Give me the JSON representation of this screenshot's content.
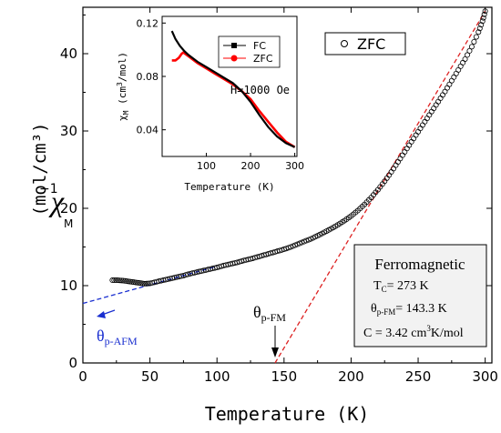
{
  "chart_data": [
    {
      "type": "scatter",
      "xlabel": "Temperature (K)",
      "ylabel_main": "χ",
      "ylabel_sup": "−1",
      "ylabel_sub": "M",
      "ylabel_unit": "(mol/cm³)",
      "xlim": [
        0,
        305
      ],
      "ylim": [
        0,
        46
      ],
      "x_ticks": [
        0,
        50,
        100,
        150,
        200,
        250,
        300
      ],
      "y_ticks": [
        0,
        10,
        20,
        30,
        40
      ],
      "legend": {
        "position": "top-right",
        "entries": [
          "ZFC"
        ]
      },
      "series": [
        {
          "name": "ZFC",
          "color": "#000000",
          "marker": "open-circle",
          "points": [
            [
              22,
              10.7
            ],
            [
              26,
              10.7
            ],
            [
              30,
              10.65
            ],
            [
              34,
              10.55
            ],
            [
              38,
              10.45
            ],
            [
              42,
              10.35
            ],
            [
              46,
              10.25
            ],
            [
              50,
              10.3
            ],
            [
              55,
              10.5
            ],
            [
              60,
              10.7
            ],
            [
              65,
              10.9
            ],
            [
              70,
              11.1
            ],
            [
              75,
              11.3
            ],
            [
              80,
              11.55
            ],
            [
              85,
              11.75
            ],
            [
              90,
              11.95
            ],
            [
              95,
              12.15
            ],
            [
              100,
              12.35
            ],
            [
              105,
              12.6
            ],
            [
              110,
              12.8
            ],
            [
              115,
              13.0
            ],
            [
              120,
              13.25
            ],
            [
              125,
              13.45
            ],
            [
              130,
              13.7
            ],
            [
              135,
              13.95
            ],
            [
              140,
              14.2
            ],
            [
              145,
              14.45
            ],
            [
              150,
              14.7
            ],
            [
              155,
              15.0
            ],
            [
              160,
              15.35
            ],
            [
              165,
              15.7
            ],
            [
              170,
              16.05
            ],
            [
              175,
              16.45
            ],
            [
              180,
              16.9
            ],
            [
              185,
              17.35
            ],
            [
              190,
              17.85
            ],
            [
              195,
              18.4
            ],
            [
              200,
              19.0
            ],
            [
              205,
              19.7
            ],
            [
              210,
              20.5
            ],
            [
              215,
              21.4
            ],
            [
              220,
              22.4
            ],
            [
              225,
              23.5
            ],
            [
              230,
              24.7
            ],
            [
              235,
              26.0
            ],
            [
              240,
              27.3
            ],
            [
              245,
              28.6
            ],
            [
              250,
              29.9
            ],
            [
              255,
              31.2
            ],
            [
              260,
              32.5
            ],
            [
              265,
              33.8
            ],
            [
              270,
              35.1
            ],
            [
              275,
              36.5
            ],
            [
              280,
              37.9
            ],
            [
              285,
              39.3
            ],
            [
              290,
              40.9
            ],
            [
              295,
              42.8
            ],
            [
              298,
              44.2
            ],
            [
              300,
              45.5
            ]
          ]
        }
      ],
      "fits": [
        {
          "name": "θp-FM fit",
          "color": "#dd2222",
          "style": "dashed",
          "points": [
            [
              143.3,
              0
            ],
            [
              300,
              45.5
            ]
          ]
        },
        {
          "name": "θp-AFM fit",
          "color": "#1a2fd0",
          "style": "dashed",
          "points": [
            [
              0,
              7.7
            ],
            [
              100,
              12.5
            ]
          ]
        }
      ],
      "annotations": {
        "theta_fm": "θp-FM",
        "theta_afm": "θp-AFM",
        "box_title": "Ferromagnetic",
        "tc": "TC= 273  K",
        "theta_fm_value": "θp-FM= 143.3 K",
        "curie_const": "C = 3.42 cm³K/mol"
      }
    },
    {
      "type": "line",
      "xlabel": "Temperature (K)",
      "ylabel": "χM (cm³/mol)",
      "xlim": [
        0,
        305
      ],
      "ylim": [
        0.02,
        0.125
      ],
      "x_ticks": [
        100,
        200,
        300
      ],
      "y_ticks": [
        0.04,
        0.08,
        0.12
      ],
      "legend": {
        "position": "top-right",
        "entries": [
          "FC",
          "ZFC"
        ]
      },
      "annotation": "H=1000 Oe",
      "series": [
        {
          "name": "FC",
          "color": "#000000",
          "points": [
            [
              22,
              0.114
            ],
            [
              30,
              0.108
            ],
            [
              40,
              0.103
            ],
            [
              50,
              0.099
            ],
            [
              60,
              0.096
            ],
            [
              80,
              0.091
            ],
            [
              100,
              0.087
            ],
            [
              120,
              0.083
            ],
            [
              140,
              0.079
            ],
            [
              160,
              0.075
            ],
            [
              180,
              0.069
            ],
            [
              200,
              0.061
            ],
            [
              220,
              0.051
            ],
            [
              240,
              0.042
            ],
            [
              260,
              0.035
            ],
            [
              280,
              0.03
            ],
            [
              300,
              0.027
            ]
          ]
        },
        {
          "name": "ZFC",
          "color": "#ff0000",
          "points": [
            [
              22,
              0.092
            ],
            [
              30,
              0.092
            ],
            [
              38,
              0.094
            ],
            [
              44,
              0.097
            ],
            [
              48,
              0.098
            ],
            [
              52,
              0.097
            ],
            [
              60,
              0.095
            ],
            [
              80,
              0.09
            ],
            [
              100,
              0.086
            ],
            [
              120,
              0.082
            ],
            [
              140,
              0.078
            ],
            [
              160,
              0.074
            ],
            [
              180,
              0.069
            ],
            [
              200,
              0.063
            ],
            [
              220,
              0.054
            ],
            [
              240,
              0.046
            ],
            [
              260,
              0.038
            ],
            [
              280,
              0.031
            ],
            [
              300,
              0.027
            ]
          ]
        }
      ]
    }
  ]
}
